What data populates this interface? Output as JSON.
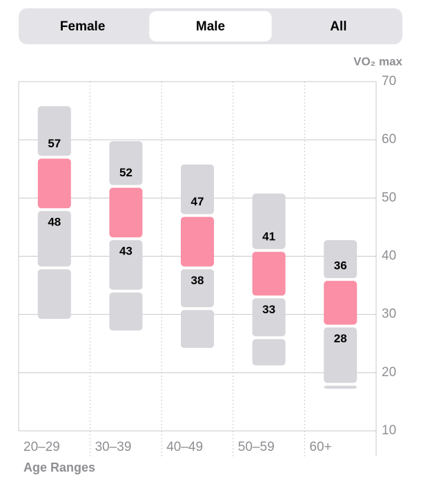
{
  "tabs": {
    "items": [
      "Female",
      "Male",
      "All"
    ],
    "selected": 1
  },
  "chart_data": {
    "type": "range-column",
    "y_axis_label": "VO₂ max",
    "x_axis_label": "Age Ranges",
    "categories": [
      "20–29",
      "30–39",
      "40–49",
      "50–59",
      "60+"
    ],
    "levels": [
      [
        66,
        57,
        48,
        38,
        29
      ],
      [
        60,
        52,
        43,
        34,
        27
      ],
      [
        56,
        47,
        38,
        31,
        24
      ],
      [
        51,
        41,
        33,
        26,
        21
      ],
      [
        43,
        36,
        28,
        18,
        17
      ]
    ],
    "segment_colors": [
      "#d6d6db",
      "#fa8fa5",
      "#d6d6db",
      "#d6d6db"
    ],
    "labeled_levels": [
      1,
      2
    ],
    "ylim": [
      10,
      70
    ],
    "yticks": [
      10,
      20,
      30,
      40,
      50,
      60,
      70
    ],
    "grid": true
  }
}
